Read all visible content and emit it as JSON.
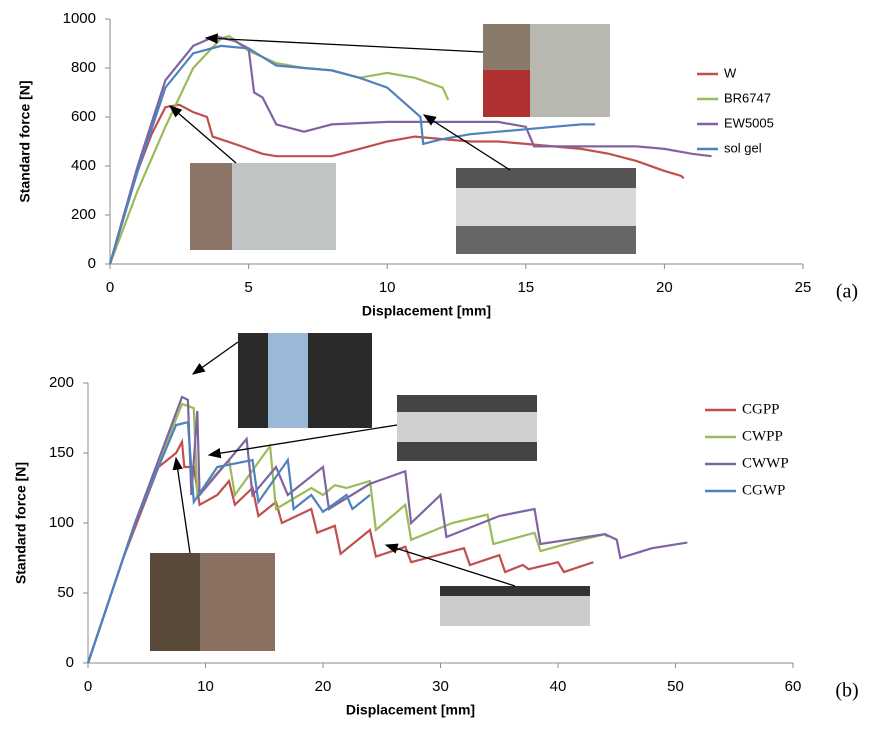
{
  "chart_data": [
    {
      "type": "line",
      "panel_label": "(a)",
      "x_label": "Displacement [mm]",
      "y_label": "Standard force [N]",
      "xlim": [
        0,
        25
      ],
      "xticks": [
        0,
        5,
        10,
        15,
        20,
        25
      ],
      "ylim": [
        0,
        1000
      ],
      "yticks": [
        0,
        200,
        400,
        600,
        800,
        1000
      ],
      "series": [
        {
          "name": "W",
          "color": "#c0504d",
          "x": [
            0,
            0.5,
            1,
            1.5,
            2,
            2.5,
            3,
            3.5,
            3.7,
            4.5,
            5,
            5.5,
            6,
            7,
            8,
            9,
            10,
            11,
            12,
            13,
            14,
            15,
            16,
            17,
            18,
            19,
            20,
            20.6,
            20.7
          ],
          "values": [
            0,
            200,
            380,
            530,
            640,
            650,
            620,
            600,
            520,
            490,
            470,
            450,
            440,
            440,
            440,
            470,
            500,
            520,
            510,
            500,
            500,
            490,
            480,
            470,
            450,
            420,
            380,
            360,
            350
          ]
        },
        {
          "name": "BR6747",
          "color": "#9bbb59",
          "x": [
            0,
            1,
            2,
            3,
            4,
            4.3,
            5,
            6,
            7,
            8,
            9,
            10,
            11,
            12,
            12.2
          ],
          "values": [
            0,
            300,
            560,
            800,
            920,
            930,
            870,
            820,
            800,
            790,
            760,
            780,
            760,
            720,
            670
          ]
        },
        {
          "name": "EW5005",
          "color": "#8064a2",
          "x": [
            0,
            1,
            2,
            3,
            3.8,
            4.5,
            5,
            5.2,
            5.5,
            6,
            7,
            8,
            10,
            12,
            14,
            15,
            15.3,
            17,
            19,
            20,
            21,
            21.7
          ],
          "values": [
            0,
            400,
            750,
            890,
            930,
            910,
            880,
            700,
            680,
            570,
            540,
            570,
            580,
            580,
            580,
            560,
            480,
            480,
            480,
            470,
            450,
            440
          ]
        },
        {
          "name": "sol gel",
          "color": "#4f81bd",
          "x": [
            0,
            1,
            2,
            3,
            4,
            5,
            6,
            7,
            8,
            9,
            10,
            11,
            11.2,
            11.3,
            12,
            13,
            14,
            15,
            16,
            17,
            17.5
          ],
          "values": [
            0,
            380,
            720,
            860,
            890,
            880,
            810,
            800,
            790,
            760,
            720,
            620,
            600,
            490,
            510,
            530,
            540,
            550,
            560,
            570,
            570
          ]
        }
      ]
    },
    {
      "type": "line",
      "panel_label": "(b)",
      "x_label": "Displacement [mm]",
      "y_label": "Standard force [N]",
      "xlim": [
        0,
        60
      ],
      "xticks": [
        0,
        10,
        20,
        30,
        40,
        50,
        60
      ],
      "ylim": [
        0,
        200
      ],
      "yticks": [
        0,
        50,
        100,
        150,
        200
      ],
      "series": [
        {
          "name": "CGPP",
          "color": "#c0504d",
          "x": [
            0,
            3,
            6,
            7.5,
            8,
            8.2,
            9,
            9.5,
            11,
            12,
            12.5,
            14,
            14.5,
            16,
            16.5,
            19,
            19.5,
            21,
            21.5,
            24,
            24.5,
            27,
            27.5,
            32,
            32.5,
            35,
            35.5,
            37,
            37.5,
            40,
            40.5,
            43
          ],
          "values": [
            0,
            75,
            140,
            150,
            158,
            140,
            140,
            113,
            120,
            130,
            113,
            125,
            105,
            115,
            100,
            110,
            93,
            98,
            78,
            95,
            76,
            83,
            72,
            82,
            70,
            77,
            65,
            70,
            67,
            72,
            65,
            72
          ]
        },
        {
          "name": "CWPP",
          "color": "#9bbb59",
          "x": [
            0,
            4,
            8,
            9,
            9.3,
            12,
            12.5,
            15.5,
            16,
            19,
            20,
            21,
            22,
            24,
            24.5,
            27,
            27.5,
            31,
            34,
            34.5,
            38,
            38.5,
            42,
            44,
            44.2
          ],
          "values": [
            0,
            100,
            185,
            182,
            120,
            145,
            120,
            155,
            110,
            125,
            120,
            127,
            125,
            130,
            95,
            113,
            88,
            100,
            106,
            85,
            93,
            80,
            88,
            92,
            90
          ]
        },
        {
          "name": "CWWP",
          "color": "#8064a2",
          "x": [
            0,
            4,
            8,
            8.5,
            8.8,
            9.3,
            9.5,
            13.5,
            14,
            16,
            17,
            20,
            20.5,
            24,
            27,
            27.5,
            30,
            30.5,
            35,
            38,
            38.5,
            44,
            45,
            45.3,
            48,
            51
          ],
          "values": [
            0,
            100,
            190,
            188,
            120,
            180,
            120,
            160,
            120,
            140,
            120,
            140,
            110,
            128,
            137,
            100,
            120,
            90,
            105,
            110,
            85,
            92,
            88,
            75,
            82,
            86
          ]
        },
        {
          "name": "CGWP",
          "color": "#4f81bd",
          "x": [
            0,
            4,
            7.5,
            8.5,
            9,
            11,
            14,
            14.5,
            17,
            17.5,
            19,
            20,
            22,
            22.5,
            24
          ],
          "values": [
            0,
            100,
            170,
            172,
            115,
            140,
            145,
            115,
            145,
            110,
            120,
            108,
            120,
            110,
            120
          ]
        }
      ]
    }
  ]
}
